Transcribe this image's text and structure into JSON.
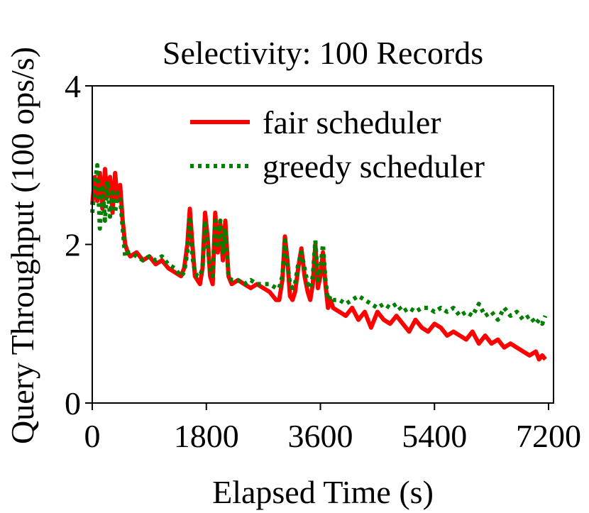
{
  "chart_data": {
    "type": "line",
    "title": "Selectivity: 100 Records",
    "xlabel": "Elapsed Time (s)",
    "ylabel": "Query Throughput (100 ops/s)",
    "xlim": [
      0,
      7200
    ],
    "ylim": [
      0,
      4
    ],
    "xticks": [
      0,
      1800,
      3600,
      5400,
      7200
    ],
    "xtick_labels": [
      "0",
      "1800",
      "3600",
      "5400",
      "7200"
    ],
    "yticks": [
      0,
      2,
      4
    ],
    "ytick_labels": [
      "0",
      "2",
      "4"
    ],
    "legend_position": "top-right",
    "colors": {
      "fair": "#ff0000",
      "greedy": "#007f00"
    },
    "series": [
      {
        "name": "fair scheduler",
        "style": "solid",
        "x": [
          0,
          40,
          80,
          120,
          160,
          200,
          240,
          280,
          320,
          360,
          400,
          440,
          480,
          520,
          560,
          600,
          700,
          800,
          900,
          1000,
          1100,
          1200,
          1300,
          1400,
          1450,
          1500,
          1540,
          1580,
          1620,
          1660,
          1700,
          1740,
          1780,
          1820,
          1860,
          1900,
          1940,
          1980,
          2020,
          2060,
          2100,
          2150,
          2200,
          2300,
          2400,
          2500,
          2600,
          2700,
          2800,
          2900,
          2950,
          3000,
          3040,
          3080,
          3120,
          3160,
          3200,
          3250,
          3300,
          3350,
          3400,
          3440,
          3480,
          3520,
          3560,
          3600,
          3640,
          3680,
          3720,
          3760,
          3800,
          3900,
          4000,
          4100,
          4200,
          4300,
          4400,
          4500,
          4600,
          4700,
          4800,
          4900,
          5000,
          5100,
          5200,
          5300,
          5400,
          5500,
          5600,
          5700,
          5800,
          5900,
          6000,
          6100,
          6200,
          6300,
          6400,
          6500,
          6600,
          6700,
          6800,
          6900,
          7000,
          7050,
          7100,
          7150
        ],
        "y": [
          2.5,
          2.85,
          2.55,
          2.9,
          2.45,
          2.95,
          2.6,
          2.85,
          2.4,
          2.9,
          2.55,
          2.75,
          2.3,
          2.0,
          1.9,
          1.85,
          1.9,
          1.8,
          1.85,
          1.75,
          1.8,
          1.7,
          1.65,
          1.6,
          1.7,
          2.0,
          2.45,
          2.0,
          1.6,
          1.55,
          1.5,
          1.7,
          2.4,
          2.1,
          1.6,
          1.5,
          2.4,
          1.9,
          2.25,
          1.8,
          2.3,
          1.6,
          1.5,
          1.55,
          1.5,
          1.45,
          1.5,
          1.45,
          1.4,
          1.3,
          1.3,
          1.55,
          2.1,
          1.8,
          1.35,
          1.3,
          1.4,
          1.7,
          1.95,
          1.6,
          1.4,
          1.3,
          1.5,
          2.0,
          1.45,
          1.6,
          1.9,
          1.5,
          1.2,
          1.3,
          1.2,
          1.15,
          1.1,
          1.2,
          1.05,
          1.15,
          0.95,
          1.15,
          1.05,
          1.0,
          1.1,
          1.0,
          0.9,
          1.05,
          0.95,
          0.9,
          1.0,
          0.95,
          0.85,
          0.9,
          0.85,
          0.8,
          0.9,
          0.75,
          0.85,
          0.75,
          0.8,
          0.7,
          0.75,
          0.7,
          0.65,
          0.6,
          0.65,
          0.55,
          0.6,
          0.55
        ]
      },
      {
        "name": "greedy scheduler",
        "style": "dotted",
        "x": [
          0,
          40,
          80,
          120,
          160,
          200,
          240,
          280,
          320,
          360,
          400,
          440,
          480,
          520,
          560,
          600,
          700,
          800,
          900,
          1000,
          1100,
          1200,
          1300,
          1400,
          1450,
          1500,
          1540,
          1580,
          1620,
          1660,
          1700,
          1740,
          1780,
          1820,
          1860,
          1900,
          1940,
          1980,
          2020,
          2060,
          2100,
          2150,
          2200,
          2300,
          2400,
          2500,
          2600,
          2700,
          2800,
          2900,
          2950,
          3000,
          3040,
          3080,
          3120,
          3160,
          3200,
          3250,
          3300,
          3350,
          3400,
          3440,
          3480,
          3520,
          3560,
          3600,
          3640,
          3680,
          3720,
          3760,
          3800,
          3900,
          4000,
          4100,
          4200,
          4300,
          4400,
          4500,
          4600,
          4700,
          4800,
          4900,
          5000,
          5100,
          5200,
          5300,
          5400,
          5500,
          5600,
          5700,
          5800,
          5900,
          6000,
          6100,
          6200,
          6300,
          6400,
          6500,
          6600,
          6700,
          6800,
          6900,
          7000,
          7050,
          7100,
          7150
        ],
        "y": [
          2.4,
          2.75,
          3.0,
          2.2,
          2.75,
          2.3,
          2.8,
          2.35,
          2.7,
          2.4,
          2.65,
          2.6,
          2.2,
          1.85,
          1.9,
          1.9,
          1.85,
          1.8,
          1.85,
          1.8,
          1.85,
          1.75,
          1.7,
          1.6,
          1.65,
          1.9,
          2.35,
          1.85,
          1.65,
          1.6,
          1.6,
          1.7,
          2.3,
          2.0,
          1.65,
          1.6,
          2.3,
          1.95,
          2.3,
          1.9,
          2.2,
          1.6,
          1.55,
          1.55,
          1.5,
          1.55,
          1.5,
          1.5,
          1.5,
          1.45,
          1.45,
          1.6,
          2.05,
          1.75,
          1.5,
          1.45,
          1.5,
          1.75,
          1.9,
          1.7,
          1.5,
          1.45,
          1.6,
          2.05,
          1.55,
          1.7,
          2.0,
          1.55,
          1.3,
          1.35,
          1.3,
          1.3,
          1.25,
          1.3,
          1.35,
          1.3,
          1.25,
          1.2,
          1.25,
          1.2,
          1.25,
          1.15,
          1.2,
          1.15,
          1.2,
          1.2,
          1.15,
          1.2,
          1.15,
          1.2,
          1.1,
          1.15,
          1.1,
          1.25,
          1.1,
          1.15,
          1.05,
          1.2,
          1.1,
          1.15,
          1.05,
          1.1,
          1.0,
          1.05,
          1.0,
          1.1
        ]
      }
    ]
  }
}
